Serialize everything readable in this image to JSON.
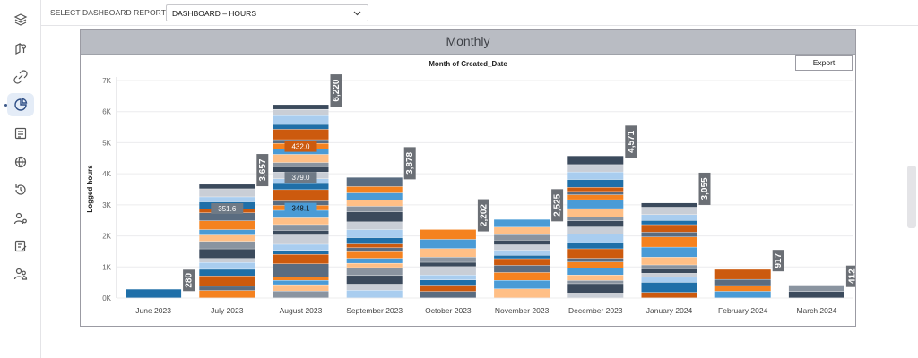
{
  "sidebar": {
    "icons": [
      "layers-icon",
      "map-pin-icon",
      "link-icon",
      "pie-chart-icon",
      "report-icon",
      "globe-refresh-icon",
      "history-icon",
      "user-settings-icon",
      "edit-list-icon",
      "user-group-icon"
    ],
    "active_index": 3
  },
  "topbar": {
    "select_label": "SELECT DASHBOARD REPORT",
    "select_value": "DASHBOARD – HOURS"
  },
  "panel": {
    "title": "Monthly",
    "export_label": "Export"
  },
  "chart_data": {
    "type": "bar",
    "stacked": true,
    "title": "Month of Created_Date",
    "xlabel": "",
    "ylabel": "Logged hours",
    "ylim": [
      0,
      7000
    ],
    "yticks": [
      0,
      1000,
      2000,
      3000,
      4000,
      5000,
      6000,
      7000
    ],
    "ytick_labels": [
      "0K",
      "1K",
      "2K",
      "3K",
      "4K",
      "5K",
      "6K",
      "7K"
    ],
    "grid": true,
    "categories": [
      "June 2023",
      "July 2023",
      "August 2023",
      "September 2023",
      "October 2023",
      "November 2023",
      "December 2023",
      "January 2024",
      "February 2024",
      "March 2024"
    ],
    "totals": [
      280,
      3657,
      6220,
      3878,
      2202,
      2525,
      4571,
      3055,
      917,
      412
    ],
    "total_labels": [
      "280",
      "3,657",
      "6,220",
      "3,878",
      "2,202",
      "2,525",
      "4,571",
      "3,055",
      "917",
      "412"
    ],
    "segment_labels": [
      {
        "category": "July 2023",
        "value": 351.6,
        "label": "351.6"
      },
      {
        "category": "August 2023",
        "value": 432.0,
        "label": "432.0"
      },
      {
        "category": "August 2023",
        "value": 379.0,
        "label": "379.0"
      },
      {
        "category": "August 2023",
        "value": 348.1,
        "label": "348.1"
      }
    ],
    "palette": [
      "#1f6fa8",
      "#f5821f",
      "#8a94a0",
      "#a9cdef",
      "#5a6c80",
      "#ffbf86",
      "#c9ced6",
      "#cc5a0e",
      "#4a9bd6",
      "#3b4a5c"
    ]
  }
}
